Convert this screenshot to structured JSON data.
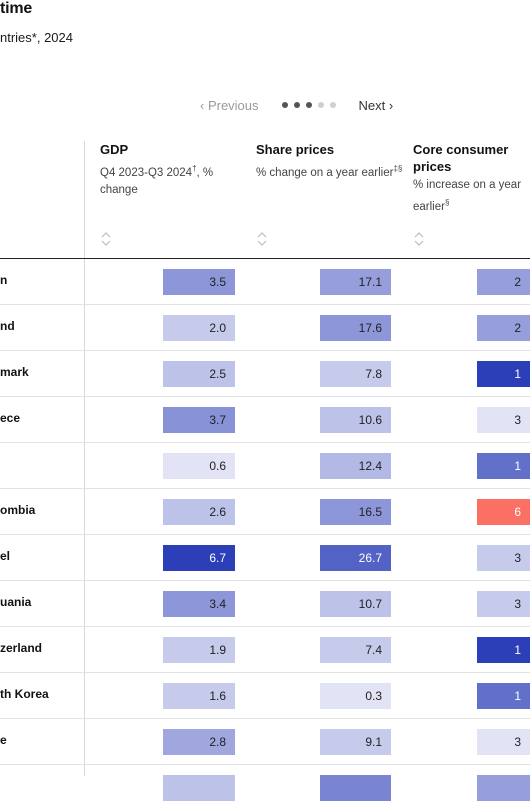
{
  "title": "time",
  "subtitle": "ntries*, 2024",
  "pager": {
    "prev_label": "‹ Previous",
    "next_label": "Next ›",
    "dots": [
      true,
      true,
      true,
      false,
      false
    ]
  },
  "colors": {
    "dot_active": "#555555",
    "dot_inactive": "#cfcfcf",
    "low": "#ecedf8",
    "high": "#2c3fb8",
    "negative": "#fb7064"
  },
  "columns": [
    {
      "name": "GDP",
      "desc": "Q4 2023-Q3 2024",
      "mark": "†",
      "desc_tail": ", % change"
    },
    {
      "name": "Share prices",
      "desc": "% change on a year earlier",
      "mark": "‡§",
      "desc_tail": ""
    },
    {
      "name": "Core consumer prices",
      "desc": "% increase on a year earlier",
      "mark": "§",
      "desc_tail": ""
    }
  ],
  "rows": [
    {
      "country": "n",
      "gdp": "3.5",
      "share": "17.1",
      "core": "2"
    },
    {
      "country": "nd",
      "gdp": "2.0",
      "share": "17.6",
      "core": "2"
    },
    {
      "country": "mark",
      "gdp": "2.5",
      "share": "7.8",
      "core": "1"
    },
    {
      "country": "ece",
      "gdp": "3.7",
      "share": "10.6",
      "core": "3"
    },
    {
      "country": "",
      "gdp": "0.6",
      "share": "12.4",
      "core": "1"
    },
    {
      "country": "ombia",
      "gdp": "2.6",
      "share": "16.5",
      "core": "6"
    },
    {
      "country": "el",
      "gdp": "6.7",
      "share": "26.7",
      "core": "3"
    },
    {
      "country": "uania",
      "gdp": "3.4",
      "share": "10.7",
      "core": "3"
    },
    {
      "country": "zerland",
      "gdp": "1.9",
      "share": "7.4",
      "core": "1"
    },
    {
      "country": "th Korea",
      "gdp": "1.6",
      "share": "0.3",
      "core": "1"
    },
    {
      "country": "e",
      "gdp": "2.8",
      "share": "9.1",
      "core": "3"
    }
  ],
  "chart_data": {
    "type": "table",
    "columns": [
      "GDP",
      "Share prices",
      "Core consumer prices"
    ],
    "series": [
      {
        "name": "GDP",
        "values": [
          3.5,
          2.0,
          2.5,
          3.7,
          0.6,
          2.6,
          6.7,
          3.4,
          1.9,
          1.6,
          2.8
        ]
      },
      {
        "name": "Share prices",
        "values": [
          17.1,
          17.6,
          7.8,
          10.6,
          12.4,
          16.5,
          26.7,
          10.7,
          7.4,
          0.3,
          9.1
        ]
      }
    ],
    "cell_fill_levels": {
      "GDP": [
        0.5,
        0.2,
        0.25,
        0.52,
        0.05,
        0.25,
        1.0,
        0.5,
        0.2,
        0.2,
        0.4
      ],
      "Share prices": [
        0.45,
        0.5,
        0.2,
        0.25,
        0.3,
        0.5,
        0.8,
        0.25,
        0.2,
        0.05,
        0.2
      ],
      "Core consumer prices": [
        0.45,
        0.45,
        1.0,
        0.05,
        0.72,
        -1,
        0.2,
        0.2,
        1.0,
        0.72,
        0.05
      ]
    },
    "grid": false,
    "legend": "none"
  }
}
